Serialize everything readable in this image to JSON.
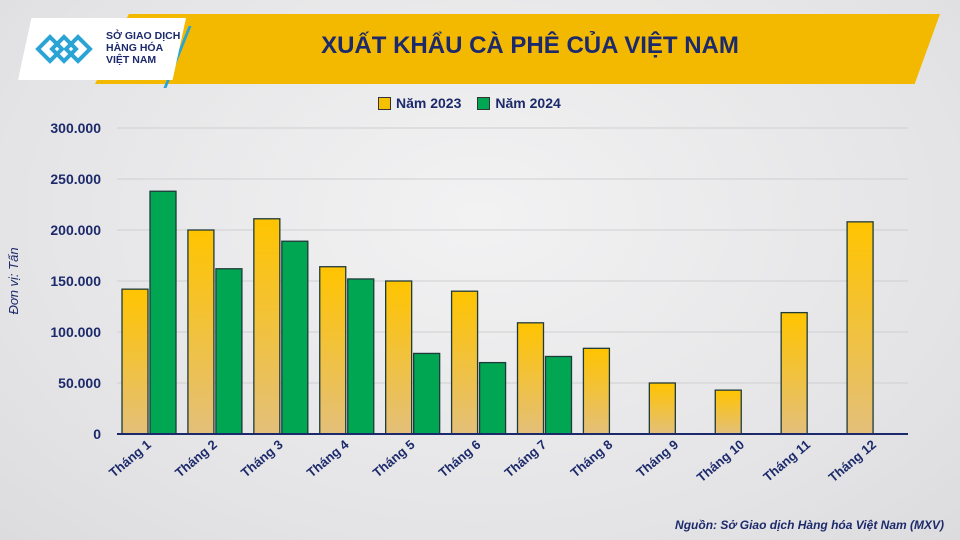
{
  "header": {
    "title": "XUẤT KHẨU CÀ PHÊ CỦA VIỆT NAM",
    "logo_text": [
      "SỞ GIAO DỊCH",
      "HÀNG HÓA",
      "VIỆT NAM"
    ]
  },
  "source": "Nguồn: Sở Giao dịch Hàng hóa Việt Nam (MXV)",
  "chart_data": {
    "type": "bar",
    "title": "XUẤT KHẨU CÀ PHÊ CỦA VIỆT NAM",
    "ylabel": "Đơn vị: Tấn",
    "xlabel": "",
    "ylim": [
      0,
      300000
    ],
    "yticks": [
      "0",
      "50.000",
      "100.000",
      "150.000",
      "200.000",
      "250.000",
      "300.000"
    ],
    "grid": true,
    "legend": "top",
    "categories": [
      "Tháng 1",
      "Tháng 2",
      "Tháng 3",
      "Tháng 4",
      "Tháng 5",
      "Tháng 6",
      "Tháng 7",
      "Tháng 8",
      "Tháng 9",
      "Tháng 10",
      "Tháng 11",
      "Tháng 12"
    ],
    "series": [
      {
        "name": "Năm 2023",
        "color": "#f5c000",
        "values": [
          142000,
          200000,
          211000,
          164000,
          150000,
          140000,
          109000,
          84000,
          50000,
          43000,
          119000,
          208000
        ]
      },
      {
        "name": "Năm 2024",
        "color": "#00a651",
        "values": [
          238000,
          162000,
          189000,
          152000,
          79000,
          70000,
          76000,
          null,
          null,
          null,
          null,
          null
        ]
      }
    ]
  }
}
